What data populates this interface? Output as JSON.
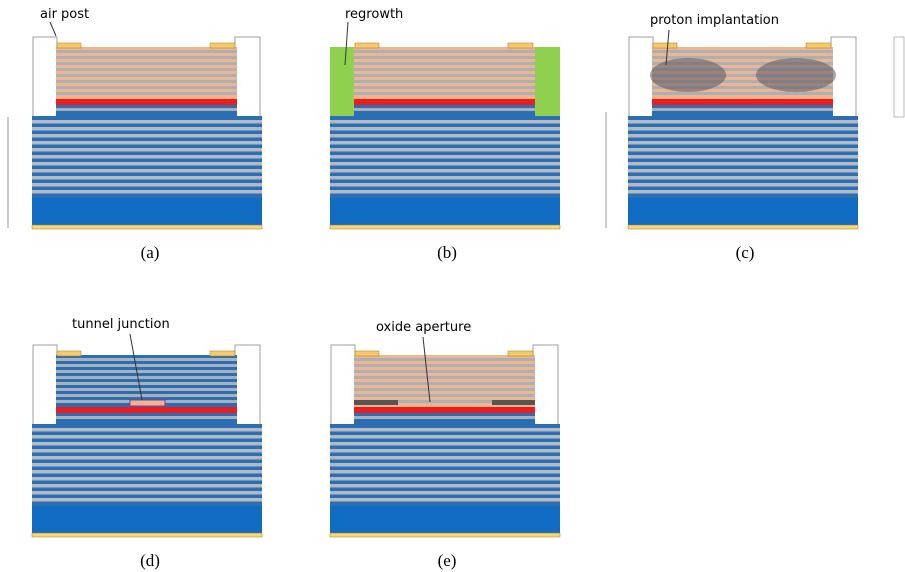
{
  "panels": [
    {
      "label": "air post",
      "caption": "(a)"
    },
    {
      "label": "regrowth",
      "caption": "(b)"
    },
    {
      "label": "proton implantation",
      "caption": "(c)"
    },
    {
      "label": "tunnel junction",
      "caption": "(d)"
    },
    {
      "label": "oxide aperture",
      "caption": "(e)"
    }
  ]
}
